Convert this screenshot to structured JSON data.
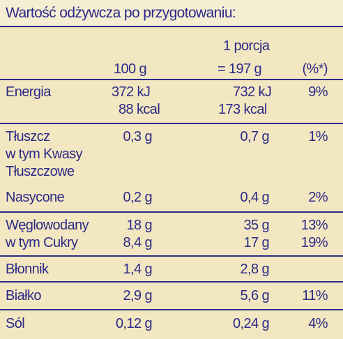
{
  "title": "Wartość odżywcza po przygotowaniu:",
  "header": {
    "col_100g": "100 g",
    "col_portion_line1": "1 porcja",
    "col_portion_line2": "= 197 g",
    "col_percent": "(%*)"
  },
  "rows": {
    "energia": {
      "label": "Energia",
      "v100_kj": "372 kJ",
      "v100_kcal": "88 kcal",
      "vp_kj": "732 kJ",
      "vp_kcal": "173 kcal",
      "pct": "9%"
    },
    "tluszcz": {
      "label": "Tłuszcz",
      "sub1": "w tym Kwasy",
      "sub2": "Tłuszczowe",
      "sub3": "Nasycone",
      "v100": "0,3 g",
      "vp": "0,7 g",
      "pct": "1%",
      "v100_sat": "0,2 g",
      "vp_sat": "0,4 g",
      "pct_sat": "2%"
    },
    "weglowodany": {
      "label": "Węglowodany",
      "sub": "w tym Cukry",
      "v100": "18 g",
      "vp": "35 g",
      "pct": "13%",
      "v100_sugar": "8,4 g",
      "vp_sugar": "17 g",
      "pct_sugar": "19%"
    },
    "blonnik": {
      "label": "Błonnik",
      "v100": "1,4 g",
      "vp": "2,8 g",
      "pct": ""
    },
    "bialko": {
      "label": "Białko",
      "v100": "2,9 g",
      "vp": "5,6 g",
      "pct": "11%"
    },
    "sol": {
      "label": "Sól",
      "v100": "0,12 g",
      "vp": "0,24 g",
      "pct": "4%"
    }
  },
  "colors": {
    "text": "#2b2a87",
    "background": "#f3e7c1",
    "header_bg": "#f6eed3"
  }
}
